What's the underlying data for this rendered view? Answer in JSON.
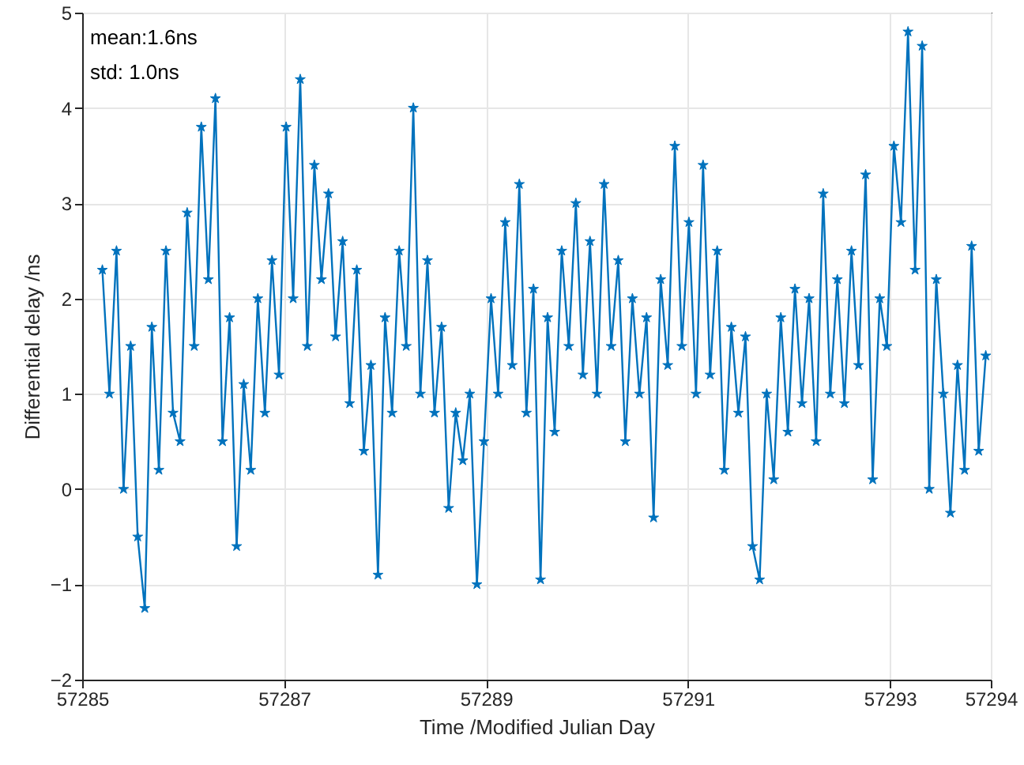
{
  "chart_data": {
    "type": "line",
    "xlabel": "Time /Modified Julian Day",
    "ylabel": "Differential delay /ns",
    "annotations": [
      "mean:1.6ns",
      "std: 1.0ns"
    ],
    "xlim": [
      57285,
      57294
    ],
    "xticks": [
      57285,
      57287,
      57289,
      57291,
      57293,
      57294
    ],
    "ylim": [
      -2,
      5
    ],
    "yticks": [
      -2,
      -1,
      0,
      1,
      2,
      3,
      4,
      5
    ],
    "grid": true,
    "marker": "star",
    "line_style": "solid",
    "x": [
      57285.2,
      57285.27,
      57285.34,
      57285.41,
      57285.48,
      57285.55,
      57285.62,
      57285.69,
      57285.76,
      57285.83,
      57285.9,
      57285.97,
      57286.04,
      57286.11,
      57286.18,
      57286.25,
      57286.32,
      57286.39,
      57286.46,
      57286.53,
      57286.6,
      57286.67,
      57286.74,
      57286.81,
      57286.88,
      57286.95,
      57287.02,
      57287.09,
      57287.16,
      57287.23,
      57287.3,
      57287.37,
      57287.44,
      57287.51,
      57287.58,
      57287.65,
      57287.72,
      57287.79,
      57287.86,
      57287.93,
      57288.0,
      57288.07,
      57288.14,
      57288.21,
      57288.28,
      57288.35,
      57288.42,
      57288.49,
      57288.56,
      57288.63,
      57288.7,
      57288.77,
      57288.84,
      57288.91,
      57288.98,
      57289.05,
      57289.12,
      57289.19,
      57289.26,
      57289.33,
      57289.4,
      57289.47,
      57289.54,
      57289.61,
      57289.68,
      57289.75,
      57289.82,
      57289.89,
      57289.96,
      57290.03,
      57290.1,
      57290.17,
      57290.24,
      57290.31,
      57290.38,
      57290.45,
      57290.52,
      57290.59,
      57290.66,
      57290.73,
      57290.8,
      57290.87,
      57290.94,
      57291.01,
      57291.08,
      57291.15,
      57291.22,
      57291.29,
      57291.36,
      57291.43,
      57291.5,
      57291.57,
      57291.64,
      57291.71,
      57291.78,
      57291.85,
      57291.92,
      57291.99,
      57292.06,
      57292.13,
      57292.2,
      57292.27,
      57292.34,
      57292.41,
      57292.48,
      57292.55,
      57292.62,
      57292.69,
      57292.76,
      57292.83,
      57292.9,
      57292.97,
      57293.04,
      57293.11,
      57293.18,
      57293.25,
      57293.32,
      57293.39,
      57293.46,
      57293.53,
      57293.6,
      57293.67,
      57293.74,
      57293.81,
      57293.88,
      57293.95
    ],
    "series": [
      {
        "color": "#0072bd",
        "values": [
          2.3,
          1.0,
          2.5,
          0.0,
          1.5,
          -0.5,
          -1.25,
          1.7,
          0.2,
          2.5,
          0.8,
          0.5,
          2.9,
          1.5,
          3.8,
          2.2,
          4.1,
          0.5,
          1.8,
          -0.6,
          1.1,
          0.2,
          2.0,
          0.8,
          2.4,
          1.2,
          3.8,
          2.0,
          4.3,
          1.5,
          3.4,
          2.2,
          3.1,
          1.6,
          2.6,
          0.9,
          2.3,
          0.4,
          1.3,
          -0.9,
          1.8,
          0.8,
          2.5,
          1.5,
          4.0,
          1.0,
          2.4,
          0.8,
          1.7,
          -0.2,
          0.8,
          0.3,
          1.0,
          -1.0,
          0.5,
          2.0,
          1.0,
          2.8,
          1.3,
          3.2,
          0.8,
          2.1,
          -0.95,
          1.8,
          0.6,
          2.5,
          1.5,
          3.0,
          1.2,
          2.6,
          1.0,
          3.2,
          1.5,
          2.4,
          0.5,
          2.0,
          1.0,
          1.8,
          -0.3,
          2.2,
          1.3,
          3.6,
          1.5,
          2.8,
          1.0,
          3.4,
          1.2,
          2.5,
          0.2,
          1.7,
          0.8,
          1.6,
          -0.6,
          -0.95,
          1.0,
          0.1,
          1.8,
          0.6,
          2.1,
          0.9,
          2.0,
          0.5,
          3.1,
          1.0,
          2.2,
          0.9,
          2.5,
          1.3,
          3.3,
          0.1,
          2.0,
          1.5,
          3.6,
          2.8,
          4.8,
          2.3,
          4.65,
          0.0,
          2.2,
          1.0,
          -0.25,
          1.3,
          0.2,
          2.55,
          0.4,
          1.4
        ]
      }
    ]
  }
}
